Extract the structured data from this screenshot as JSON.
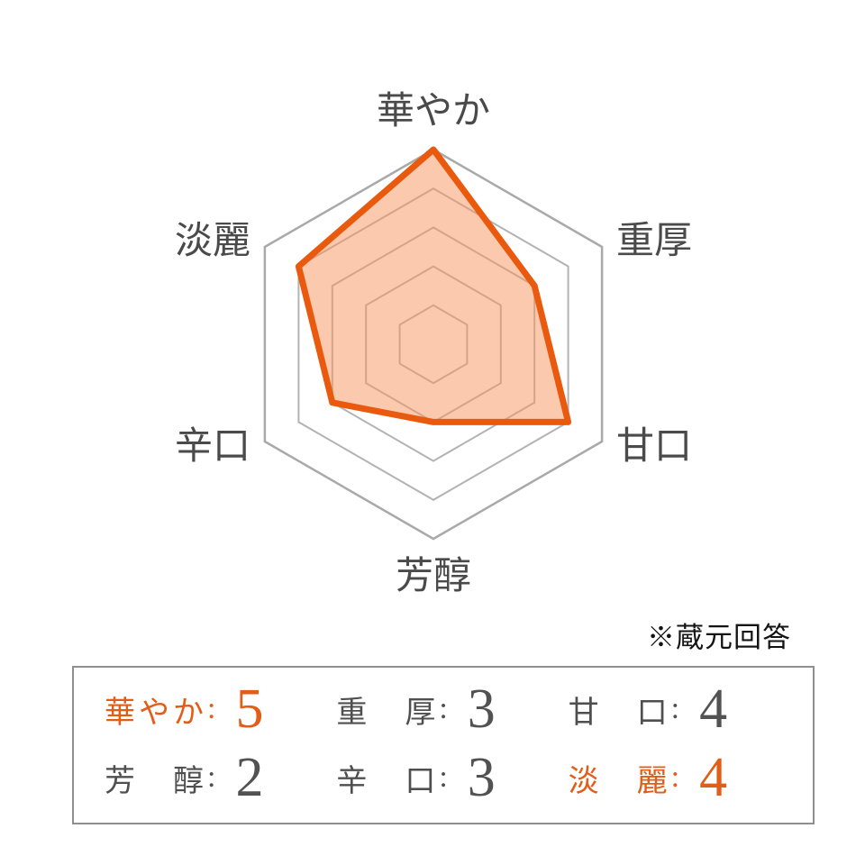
{
  "note": {
    "text": "※蔵元回答"
  },
  "chart_data": {
    "type": "radar",
    "axes": [
      "華やか",
      "重厚",
      "甘口",
      "芳醇",
      "辛口",
      "淡麗"
    ],
    "values": [
      5,
      3,
      4,
      2,
      3,
      4
    ],
    "max": 5,
    "rings": 5,
    "grid": "concentric-hexagons, no radial spokes",
    "legend": "none",
    "stroke_color": "#ea5a0e",
    "fill_color": "rgba(247,148,92,0.5)",
    "grid_color": "#b3b3b3",
    "grid_outer_color": "#a9a9a9",
    "label_color": "#4a4a4a"
  },
  "table": {
    "colon": ":",
    "accent_color": "#e25d17",
    "cells": [
      {
        "label": "華やか",
        "value": "5",
        "accent": true
      },
      {
        "label": "重厚",
        "value": "3",
        "accent": false
      },
      {
        "label": "甘口",
        "value": "4",
        "accent": false
      },
      {
        "label": "芳醇",
        "value": "2",
        "accent": false
      },
      {
        "label": "辛口",
        "value": "3",
        "accent": false
      },
      {
        "label": "淡麗",
        "value": "4",
        "accent": true
      }
    ]
  }
}
